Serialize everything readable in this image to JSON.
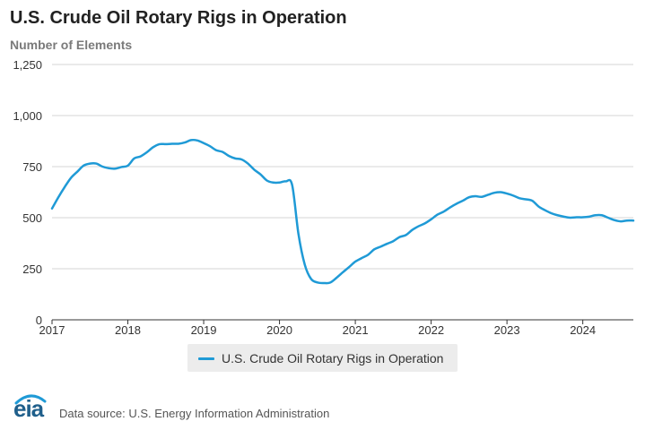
{
  "chart_data": {
    "type": "line",
    "title": "U.S. Crude Oil Rotary Rigs in Operation",
    "subtitle": "Number of Elements",
    "xlabel": "",
    "ylabel": "",
    "ylim": [
      0,
      1250
    ],
    "yticks": [
      0,
      250,
      500,
      750,
      1000,
      1250
    ],
    "ytick_labels": [
      "0",
      "250",
      "500",
      "750",
      "1,000",
      "1,250"
    ],
    "xlim": [
      "2017-01",
      "2024-09"
    ],
    "xticks": [
      "2017",
      "2018",
      "2019",
      "2020",
      "2021",
      "2022",
      "2023",
      "2024"
    ],
    "grid": true,
    "legend_position": "bottom",
    "series": [
      {
        "name": "U.S. Crude Oil Rotary Rigs in Operation",
        "color": "#1f9ad6",
        "x": [
          "2017-01",
          "2017-02",
          "2017-03",
          "2017-04",
          "2017-05",
          "2017-06",
          "2017-07",
          "2017-08",
          "2017-09",
          "2017-10",
          "2017-11",
          "2017-12",
          "2018-01",
          "2018-02",
          "2018-03",
          "2018-04",
          "2018-05",
          "2018-06",
          "2018-07",
          "2018-08",
          "2018-09",
          "2018-10",
          "2018-11",
          "2018-12",
          "2019-01",
          "2019-02",
          "2019-03",
          "2019-04",
          "2019-05",
          "2019-06",
          "2019-07",
          "2019-08",
          "2019-09",
          "2019-10",
          "2019-11",
          "2019-12",
          "2020-01",
          "2020-02",
          "2020-03",
          "2020-04",
          "2020-05",
          "2020-06",
          "2020-07",
          "2020-08",
          "2020-09",
          "2020-10",
          "2020-11",
          "2020-12",
          "2021-01",
          "2021-02",
          "2021-03",
          "2021-04",
          "2021-05",
          "2021-06",
          "2021-07",
          "2021-08",
          "2021-09",
          "2021-10",
          "2021-11",
          "2021-12",
          "2022-01",
          "2022-02",
          "2022-03",
          "2022-04",
          "2022-05",
          "2022-06",
          "2022-07",
          "2022-08",
          "2022-09",
          "2022-10",
          "2022-11",
          "2022-12",
          "2023-01",
          "2023-02",
          "2023-03",
          "2023-04",
          "2023-05",
          "2023-06",
          "2023-07",
          "2023-08",
          "2023-09",
          "2023-10",
          "2023-11",
          "2023-12",
          "2024-01",
          "2024-02",
          "2024-03",
          "2024-04",
          "2024-05",
          "2024-06",
          "2024-07",
          "2024-08",
          "2024-09"
        ],
        "values": [
          545,
          600,
          650,
          695,
          725,
          755,
          765,
          765,
          750,
          742,
          740,
          748,
          755,
          790,
          800,
          820,
          845,
          860,
          860,
          862,
          862,
          868,
          880,
          878,
          865,
          850,
          830,
          822,
          802,
          790,
          785,
          765,
          735,
          712,
          682,
          672,
          672,
          678,
          660,
          420,
          270,
          200,
          183,
          180,
          182,
          205,
          232,
          258,
          285,
          302,
          318,
          345,
          358,
          372,
          385,
          405,
          415,
          440,
          458,
          472,
          492,
          515,
          530,
          550,
          568,
          583,
          600,
          605,
          602,
          612,
          622,
          625,
          618,
          608,
          595,
          590,
          583,
          555,
          537,
          522,
          512,
          505,
          500,
          502,
          502,
          505,
          512,
          512,
          500,
          488,
          482,
          486,
          486
        ]
      }
    ]
  },
  "legend": {
    "label": "U.S. Crude Oil Rotary Rigs in Operation"
  },
  "logo": {
    "text": "eia"
  },
  "source": "Data source: U.S. Energy Information Administration"
}
